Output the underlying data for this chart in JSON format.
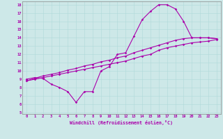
{
  "xlabel": "Windchill (Refroidissement éolien,°C)",
  "bg_color": "#cde8e8",
  "line_color": "#aa00aa",
  "xmin": 0,
  "xmax": 23,
  "ymin": 5,
  "ymax": 18,
  "curve1_x": [
    0,
    1,
    2,
    3,
    4,
    5,
    6,
    7,
    8,
    9,
    10,
    11,
    12,
    13,
    14,
    15,
    16,
    17,
    18,
    19,
    20,
    21,
    22,
    23
  ],
  "curve1_y": [
    9.0,
    9.2,
    9.1,
    8.4,
    8.0,
    7.5,
    6.2,
    7.5,
    7.5,
    10.0,
    10.5,
    12.0,
    12.2,
    14.2,
    16.2,
    17.2,
    18.0,
    18.0,
    17.5,
    16.0,
    14.0,
    14.0,
    14.0,
    13.9
  ],
  "curve2_x": [
    0,
    1,
    2,
    3,
    4,
    5,
    6,
    7,
    8,
    9,
    10,
    11,
    12,
    13,
    14,
    15,
    16,
    17,
    18,
    19,
    20,
    21,
    22,
    23
  ],
  "curve2_y": [
    8.8,
    9.1,
    9.4,
    9.6,
    9.8,
    10.1,
    10.3,
    10.6,
    10.8,
    11.1,
    11.3,
    11.6,
    11.8,
    12.2,
    12.5,
    12.8,
    13.1,
    13.4,
    13.7,
    13.9,
    14.0,
    14.0,
    14.0,
    13.9
  ],
  "curve3_x": [
    0,
    1,
    2,
    3,
    4,
    5,
    6,
    7,
    8,
    9,
    10,
    11,
    12,
    13,
    14,
    15,
    16,
    17,
    18,
    19,
    20,
    21,
    22,
    23
  ],
  "curve3_y": [
    8.8,
    9.0,
    9.2,
    9.4,
    9.6,
    9.8,
    10.0,
    10.2,
    10.4,
    10.6,
    10.8,
    11.0,
    11.2,
    11.5,
    11.8,
    12.0,
    12.5,
    12.8,
    13.0,
    13.2,
    13.4,
    13.5,
    13.6,
    13.8
  ],
  "xtick_labels": [
    "0",
    "1",
    "2",
    "3",
    "4",
    "5",
    "6",
    "7",
    "8",
    "9",
    "10",
    "11",
    "12",
    "13",
    "14",
    "15",
    "16",
    "17",
    "18",
    "19",
    "20",
    "21",
    "22",
    "23"
  ],
  "ytick_labels": [
    "5",
    "6",
    "7",
    "8",
    "9",
    "10",
    "11",
    "12",
    "13",
    "14",
    "15",
    "16",
    "17",
    "18"
  ]
}
